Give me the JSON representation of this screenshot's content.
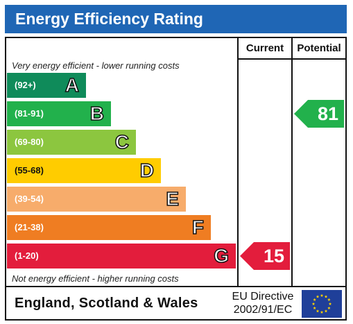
{
  "header": {
    "title": "Energy Efficiency Rating"
  },
  "columns": {
    "current": "Current",
    "potential": "Potential"
  },
  "notes": {
    "top": "Very energy efficient - lower running costs",
    "bottom": "Not energy efficient - higher running costs"
  },
  "chart_data": {
    "type": "bar",
    "title": "Energy Efficiency Rating",
    "categories": [
      "A",
      "B",
      "C",
      "D",
      "E",
      "F",
      "G"
    ],
    "ranges": [
      "(92+)",
      "(81-91)",
      "(69-80)",
      "(55-68)",
      "(39-54)",
      "(21-38)",
      "(1-20)"
    ],
    "band_colors": [
      "#0f8b5a",
      "#22b14c",
      "#8cc63f",
      "#ffcc00",
      "#f7ac6b",
      "#ef7d22",
      "#e31d3c"
    ],
    "current": {
      "value": 15,
      "band": "G",
      "color": "#e31d3c"
    },
    "potential": {
      "value": 81,
      "band": "B",
      "color": "#22b14c"
    }
  },
  "footer": {
    "region": "England, Scotland & Wales",
    "directive_line1": "EU Directive",
    "directive_line2": "2002/91/EC"
  }
}
